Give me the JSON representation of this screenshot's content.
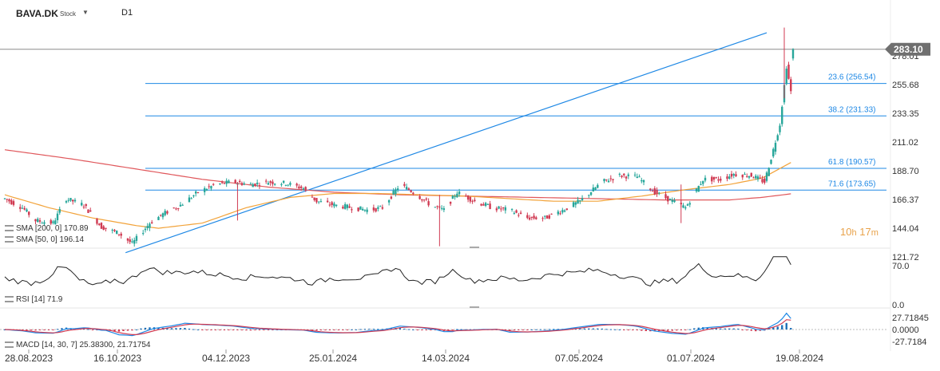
{
  "header": {
    "symbol": "BAVA.DK",
    "type": "Stock",
    "timeframe": "D1"
  },
  "price_axis": {
    "ticks": [
      "278.01",
      "255.68",
      "233.35",
      "211.02",
      "188.70",
      "166.37",
      "144.04",
      "121.72"
    ],
    "current_price": "283.10"
  },
  "date_axis": {
    "ticks": [
      "28.08.2023",
      "16.10.2023",
      "04.12.2023",
      "25.01.2024",
      "14.03.2024",
      "07.05.2024",
      "01.07.2024",
      "19.08.2024"
    ]
  },
  "legends": {
    "sma200": "SMA [200, 0] 170.89",
    "sma50": "SMA [50, 0] 196.14",
    "rsi": "RSI [14] 71.9",
    "macd": "MACD [14, 30, 7] 25.38300, 21.71754"
  },
  "countdown": {
    "hours": "10",
    "h_unit": "h",
    "minutes": "17",
    "m_unit": "m"
  },
  "colors": {
    "bull": "#26a69a",
    "bear": "#d03a52",
    "sma50": "#f2a33a",
    "sma200": "#e0585c",
    "fib": "#1e88e5",
    "macd": "#1e88e5",
    "signal": "#d03a52",
    "hist": "#1e6fb8"
  },
  "chart_data": [
    {
      "type": "candlestick",
      "title": "BAVA.DK",
      "y_range": [
        121.72,
        300
      ],
      "current_price": 283.1,
      "fibonacci_levels": [
        {
          "label": "23.6 (256.54)",
          "value": 256.54
        },
        {
          "label": "38.2 (231.33)",
          "value": 231.33
        },
        {
          "label": "61.8 (190.57)",
          "value": 190.57
        },
        {
          "label": "71.6 (173.65)",
          "value": 173.65
        }
      ],
      "trendline": {
        "from": {
          "date": "2023-10-17",
          "value": 125
        },
        "to": {
          "date": "2024-08-14",
          "value": 296
        }
      },
      "sma200": [
        [
          0,
          205
        ],
        [
          30,
          198
        ],
        [
          60,
          190
        ],
        [
          90,
          182
        ],
        [
          120,
          176
        ],
        [
          150,
          172
        ],
        [
          180,
          170
        ],
        [
          210,
          169
        ],
        [
          240,
          168
        ],
        [
          270,
          167
        ],
        [
          300,
          166
        ],
        [
          330,
          166
        ],
        [
          345,
          168
        ],
        [
          359,
          171
        ]
      ],
      "sma50": [
        [
          0,
          170
        ],
        [
          20,
          160
        ],
        [
          40,
          152
        ],
        [
          60,
          146
        ],
        [
          70,
          144
        ],
        [
          90,
          148
        ],
        [
          110,
          160
        ],
        [
          130,
          168
        ],
        [
          150,
          171
        ],
        [
          170,
          171
        ],
        [
          190,
          170
        ],
        [
          210,
          169
        ],
        [
          230,
          167
        ],
        [
          250,
          165
        ],
        [
          270,
          165
        ],
        [
          290,
          169
        ],
        [
          310,
          174
        ],
        [
          330,
          178
        ],
        [
          345,
          183
        ],
        [
          359,
          196
        ]
      ],
      "close_path": [
        [
          0,
          167
        ],
        [
          8,
          160
        ],
        [
          14,
          150
        ],
        [
          22,
          148
        ],
        [
          28,
          167
        ],
        [
          36,
          162
        ],
        [
          44,
          145
        ],
        [
          52,
          140
        ],
        [
          58,
          132
        ],
        [
          66,
          148
        ],
        [
          72,
          155
        ],
        [
          80,
          162
        ],
        [
          88,
          172
        ],
        [
          96,
          178
        ],
        [
          104,
          180
        ],
        [
          112,
          178
        ],
        [
          120,
          180
        ],
        [
          128,
          179
        ],
        [
          136,
          175
        ],
        [
          142,
          165
        ],
        [
          150,
          162
        ],
        [
          158,
          160
        ],
        [
          166,
          158
        ],
        [
          172,
          160
        ],
        [
          180,
          178
        ],
        [
          186,
          172
        ],
        [
          194,
          162
        ],
        [
          200,
          158
        ],
        [
          206,
          172
        ],
        [
          214,
          165
        ],
        [
          222,
          160
        ],
        [
          230,
          158
        ],
        [
          238,
          152
        ],
        [
          246,
          152
        ],
        [
          254,
          158
        ],
        [
          262,
          165
        ],
        [
          272,
          180
        ],
        [
          280,
          185
        ],
        [
          288,
          184
        ],
        [
          296,
          172
        ],
        [
          304,
          165
        ],
        [
          310,
          160
        ],
        [
          318,
          182
        ],
        [
          326,
          182
        ],
        [
          332,
          186
        ],
        [
          340,
          185
        ],
        [
          346,
          180
        ],
        [
          350,
          205
        ],
        [
          353,
          225
        ],
        [
          356,
          270
        ],
        [
          358,
          250
        ],
        [
          359,
          283
        ]
      ]
    },
    {
      "type": "line",
      "title": "RSI [14]",
      "y_ticks": [
        70.0,
        0.0
      ],
      "value": 71.9
    },
    {
      "type": "line",
      "title": "MACD [14, 30, 7]",
      "y_ticks": [
        27.71845,
        0.0,
        -27.7184
      ],
      "macd": 25.383,
      "signal": 21.71754
    }
  ]
}
